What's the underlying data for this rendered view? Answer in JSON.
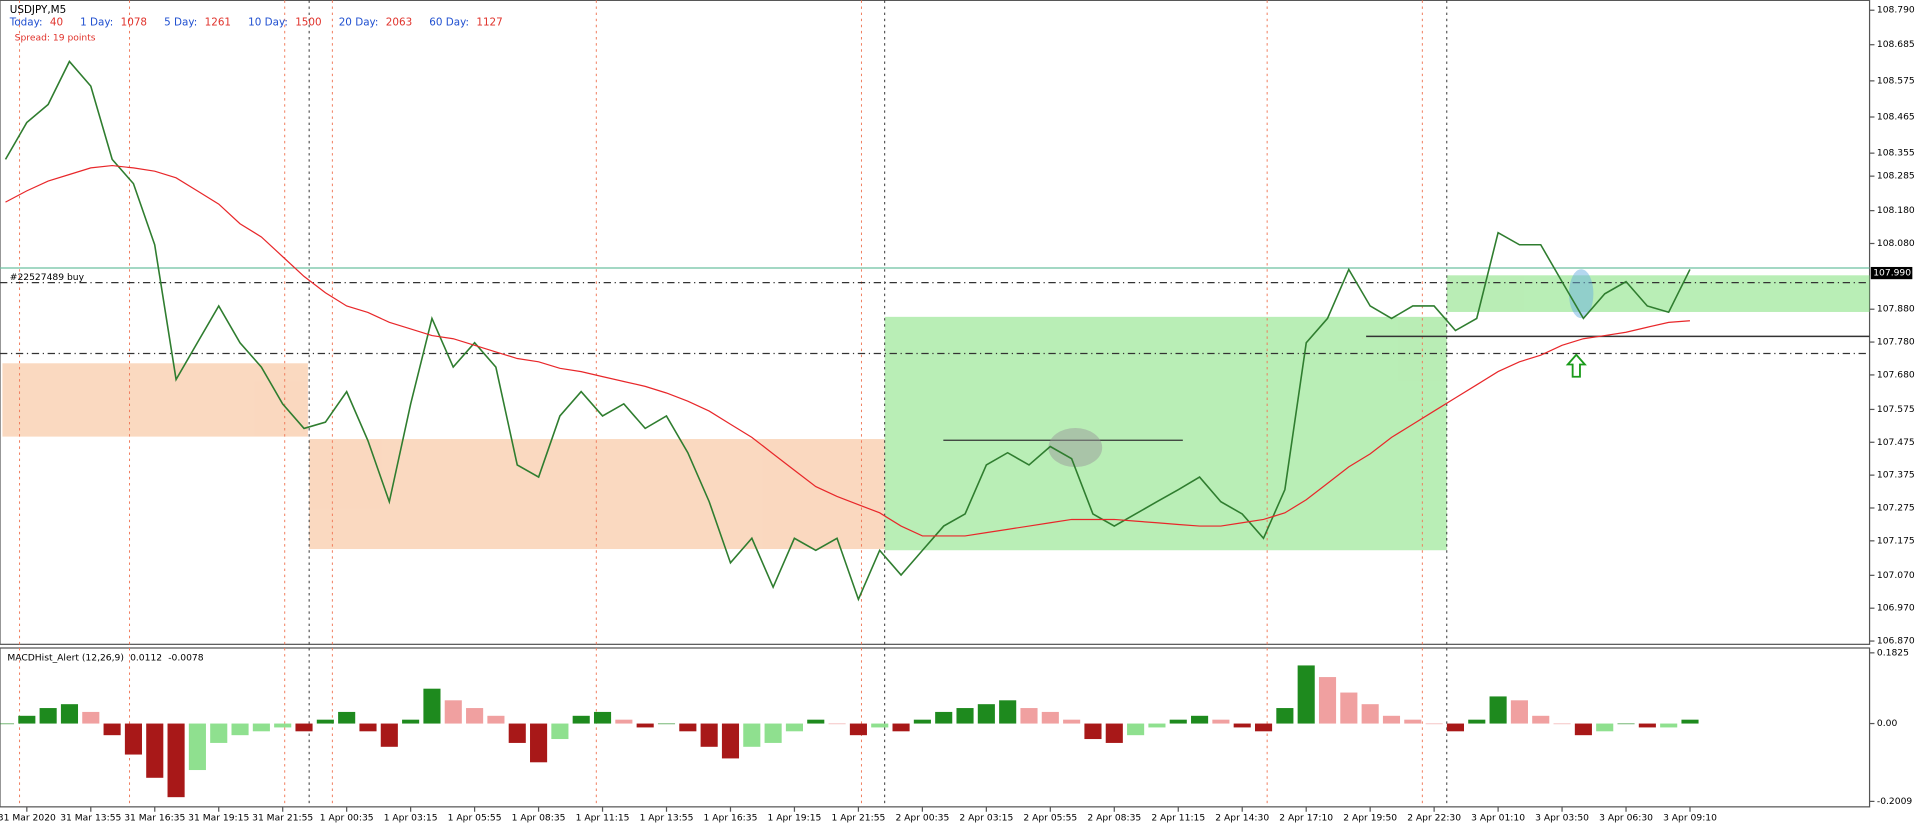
{
  "header": {
    "symbol": "USDJPY,M5",
    "spread": "Spread: 19 points",
    "stats": [
      {
        "label": "Today:",
        "value": 40
      },
      {
        "label": "1 Day:",
        "value": 1078
      },
      {
        "label": "5 Day:",
        "value": 1261
      },
      {
        "label": "10 Day:",
        "value": 1500
      },
      {
        "label": "20 Day:",
        "value": 2063
      },
      {
        "label": "60 Day:",
        "value": 1127
      }
    ]
  },
  "chart_data": [
    {
      "type": "line",
      "order_label": "#22527489 buy",
      "current_price": {
        "value": 107.99,
        "label": "107.990"
      },
      "categories": [
        null,
        "31 Mar 2020",
        null,
        null,
        "31 Mar 13:55",
        null,
        null,
        "31 Mar 16:35",
        null,
        null,
        "31 Mar 19:15",
        null,
        null,
        "31 Mar 21:55",
        null,
        null,
        "1 Apr 00:35",
        null,
        null,
        "1 Apr 03:15",
        null,
        null,
        "1 Apr 05:55",
        null,
        null,
        "1 Apr 08:35",
        null,
        null,
        "1 Apr 11:15",
        null,
        null,
        "1 Apr 13:55",
        null,
        null,
        "1 Apr 16:35",
        null,
        null,
        "1 Apr 19:15",
        null,
        null,
        "1 Apr 21:55",
        null,
        null,
        "2 Apr 00:35",
        null,
        null,
        "2 Apr 03:15",
        null,
        null,
        "2 Apr 05:55",
        null,
        null,
        "2 Apr 08:35",
        null,
        null,
        "2 Apr 11:15",
        null,
        null,
        "2 Apr 14:30",
        null,
        null,
        "2 Apr 17:10",
        null,
        null,
        "2 Apr 19:50",
        null,
        null,
        "2 Apr 22:30",
        null,
        null,
        "3 Apr 01:10",
        null,
        null,
        "3 Apr 03:50",
        null,
        null,
        "3 Apr 06:30",
        null,
        null,
        "3 Apr 09:10"
      ],
      "series": [
        {
          "name": "USDJPY",
          "color": "#2f7d2f",
          "values": [
            108.336,
            108.448,
            108.503,
            108.634,
            108.559,
            108.336,
            108.262,
            108.076,
            107.666,
            107.778,
            107.89,
            107.778,
            107.704,
            107.592,
            107.517,
            107.536,
            107.629,
            107.48,
            107.294,
            107.592,
            107.852,
            107.704,
            107.778,
            107.704,
            107.406,
            107.369,
            107.555,
            107.629,
            107.555,
            107.592,
            107.517,
            107.555,
            107.443,
            107.294,
            107.108,
            107.183,
            107.034,
            107.183,
            107.146,
            107.183,
            106.997,
            107.146,
            107.071,
            107.146,
            107.22,
            107.257,
            107.406,
            107.443,
            107.406,
            107.462,
            107.425,
            107.257,
            107.22,
            107.257,
            107.294,
            107.331,
            107.369,
            107.294,
            107.257,
            107.183,
            107.331,
            107.778,
            107.852,
            108.001,
            107.89,
            107.852,
            107.89,
            107.89,
            107.815,
            107.852,
            108.113,
            108.076,
            108.076,
            107.964,
            107.852,
            107.927,
            107.964,
            107.89,
            107.871,
            108.001
          ]
        },
        {
          "name": "MA",
          "color": "#e8272a",
          "values": [
            108.206,
            108.24,
            108.27,
            108.29,
            108.31,
            108.317,
            108.31,
            108.3,
            108.28,
            108.24,
            108.2,
            108.14,
            108.1,
            108.04,
            107.98,
            107.93,
            107.89,
            107.87,
            107.84,
            107.82,
            107.8,
            107.79,
            107.77,
            107.75,
            107.73,
            107.72,
            107.7,
            107.69,
            107.675,
            107.66,
            107.645,
            107.625,
            107.6,
            107.57,
            107.53,
            107.49,
            107.44,
            107.39,
            107.34,
            107.31,
            107.285,
            107.26,
            107.22,
            107.19,
            107.19,
            107.19,
            107.2,
            107.21,
            107.22,
            107.23,
            107.24,
            107.24,
            107.24,
            107.235,
            107.23,
            107.225,
            107.22,
            107.22,
            107.23,
            107.24,
            107.26,
            107.3,
            107.35,
            107.4,
            107.44,
            107.49,
            107.53,
            107.57,
            107.61,
            107.65,
            107.69,
            107.72,
            107.74,
            107.77,
            107.79,
            107.8,
            107.81,
            107.825,
            107.84,
            107.845
          ]
        }
      ],
      "ylim": [
        106.86,
        108.82
      ],
      "yticks": [
        {
          "value": 108.79,
          "label": "108.790"
        },
        {
          "value": 108.685,
          "label": "108.685"
        },
        {
          "value": 108.575,
          "label": "108.575"
        },
        {
          "value": 108.465,
          "label": "108.465"
        },
        {
          "value": 108.355,
          "label": "108.355"
        },
        {
          "value": 108.285,
          "label": "108.285"
        },
        {
          "value": 108.18,
          "label": "108.180"
        },
        {
          "value": 108.08,
          "label": "108.080"
        },
        {
          "value": 107.88,
          "label": "107.880"
        },
        {
          "value": 107.78,
          "label": "107.780"
        },
        {
          "value": 107.68,
          "label": "107.680"
        },
        107.575,
        107.475,
        107.375,
        107.275,
        107.175,
        {
          "value": 107.07,
          "label": "107.070"
        },
        {
          "value": 106.97,
          "label": "106.970"
        },
        {
          "value": 106.87,
          "label": "106.870"
        }
      ]
    },
    {
      "type": "bar",
      "title": "MACDHist_Alert (12,26,9)",
      "indicator_values": [
        0.0112,
        -0.0078
      ],
      "values": [
        0,
        0.02,
        0.04,
        0.05,
        0.03,
        -0.03,
        -0.08,
        -0.14,
        -0.19,
        -0.12,
        -0.05,
        -0.03,
        -0.02,
        -0.01,
        -0.02,
        0.01,
        0.03,
        -0.02,
        -0.06,
        0.01,
        0.09,
        0.06,
        0.04,
        0.02,
        -0.05,
        -0.1,
        -0.04,
        0.02,
        0.03,
        0.01,
        -0.01,
        0,
        -0.02,
        -0.06,
        -0.09,
        -0.06,
        -0.05,
        -0.02,
        0.01,
        0,
        -0.03,
        -0.01,
        -0.02,
        0.01,
        0.03,
        0.04,
        0.05,
        0.06,
        0.04,
        0.03,
        0.01,
        -0.04,
        -0.05,
        -0.03,
        -0.01,
        0.01,
        0.02,
        0.01,
        -0.01,
        -0.02,
        0.04,
        0.15,
        0.12,
        0.08,
        0.05,
        0.02,
        0.01,
        0,
        -0.02,
        0.01,
        0.07,
        0.06,
        0.02,
        0,
        -0.03,
        -0.02,
        0,
        -0.01,
        -0.01,
        0.01
      ],
      "y2lim": [
        -0.215,
        0.195
      ],
      "y2ticks": [
        0.1825,
        {
          "value": 0,
          "label": "0.00"
        },
        -0.2009
      ]
    }
  ]
}
